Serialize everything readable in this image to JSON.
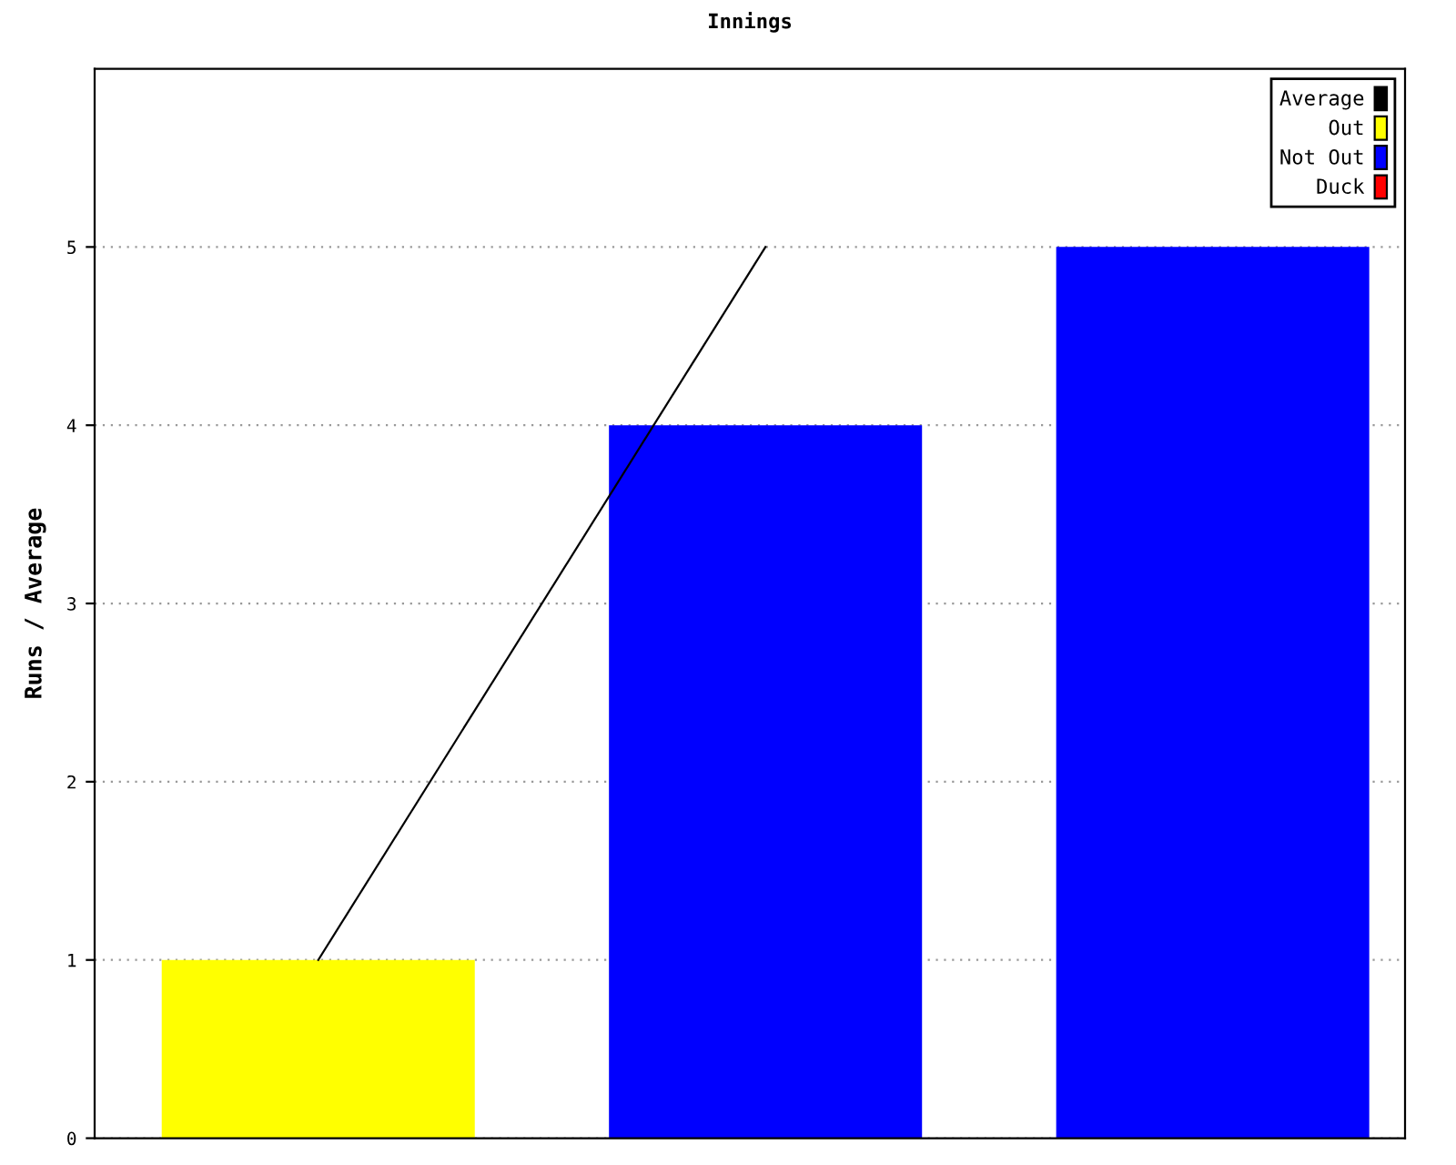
{
  "chart_data": {
    "type": "bar",
    "title": "Innings",
    "ylabel": "Runs / Average",
    "categories": [
      null,
      null,
      null
    ],
    "series": [
      {
        "name": "Average",
        "type": "line",
        "color": "#000000",
        "values": [
          1,
          5,
          null
        ]
      },
      {
        "name": "Out",
        "color": "#ffff00",
        "values": [
          1,
          null,
          null
        ]
      },
      {
        "name": "Not Out",
        "color": "#0000ff",
        "values": [
          null,
          4,
          5
        ]
      },
      {
        "name": "Duck",
        "color": "#ff0000",
        "values": [
          null,
          null,
          null
        ]
      }
    ],
    "ylim": [
      0,
      6
    ],
    "yticks": [
      0,
      1,
      2,
      3,
      4,
      5
    ],
    "grid": "y",
    "legend": "top right",
    "marker": "none",
    "line_style": "solid"
  }
}
